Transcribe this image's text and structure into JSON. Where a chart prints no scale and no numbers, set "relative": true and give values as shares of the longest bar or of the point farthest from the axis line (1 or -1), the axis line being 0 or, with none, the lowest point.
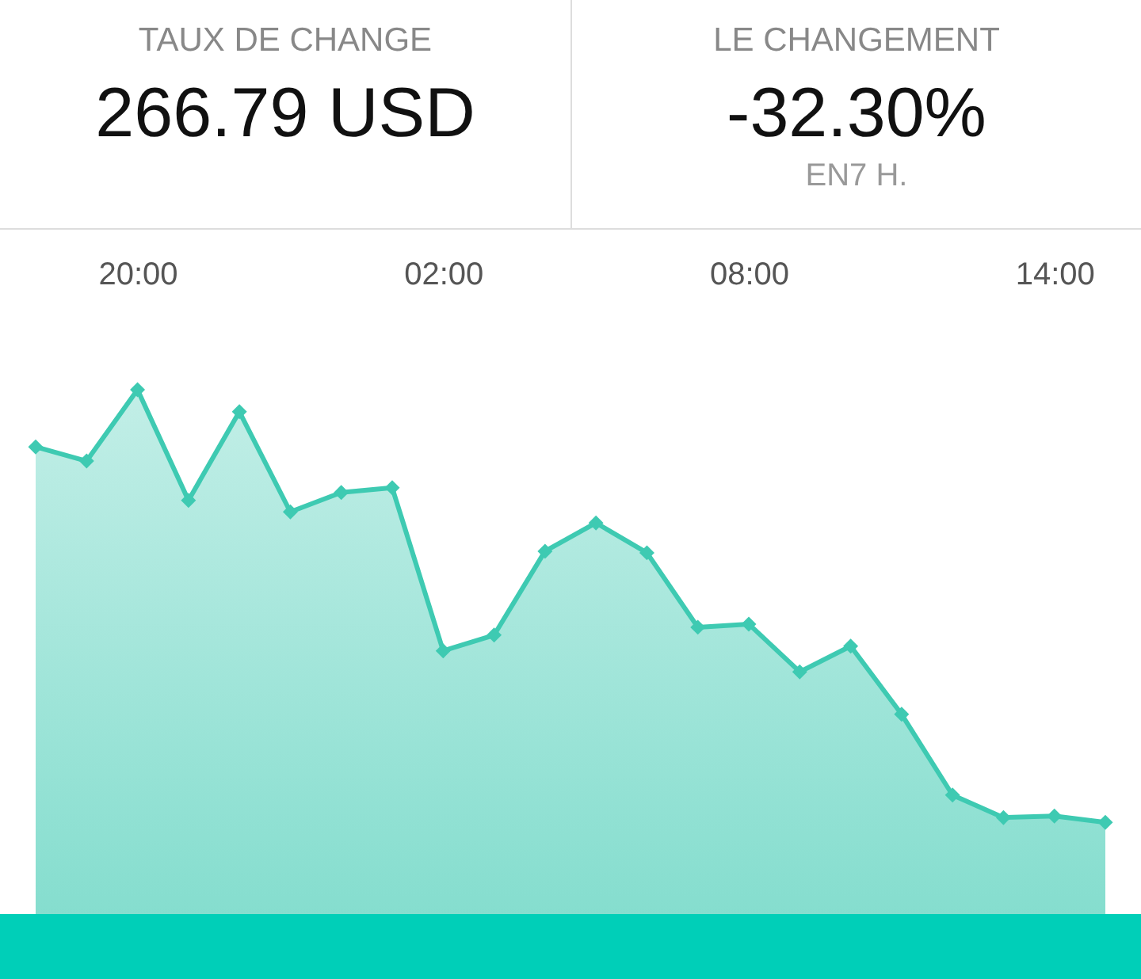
{
  "chart_data": [
    {
      "type": "other",
      "title": "TAUX DE CHANGE",
      "annotations": [
        "266.79 USD"
      ]
    },
    {
      "type": "other",
      "title": "LE CHANGEMENT",
      "annotations": [
        "-32.30%",
        "EN7 H."
      ]
    },
    {
      "type": "area",
      "relative": true,
      "categories": [
        null,
        null,
        "20:00",
        null,
        null,
        null,
        null,
        null,
        "02:00",
        null,
        null,
        null,
        null,
        null,
        "08:00",
        null,
        null,
        null,
        null,
        null,
        "14:00",
        null
      ],
      "tick_labels": "x",
      "marker": "diamond",
      "line_style": "solid",
      "series": [
        {
          "color": "#3ecab2",
          "values": [
            0.891,
            0.864,
            1,
            0.789,
            0.958,
            0.767,
            0.804,
            0.813,
            0.502,
            0.532,
            0.692,
            0.746,
            0.689,
            0.547,
            0.553,
            0.462,
            0.511,
            0.381,
            0.227,
            0.184,
            0.187,
            0.175
          ]
        }
      ]
    }
  ]
}
